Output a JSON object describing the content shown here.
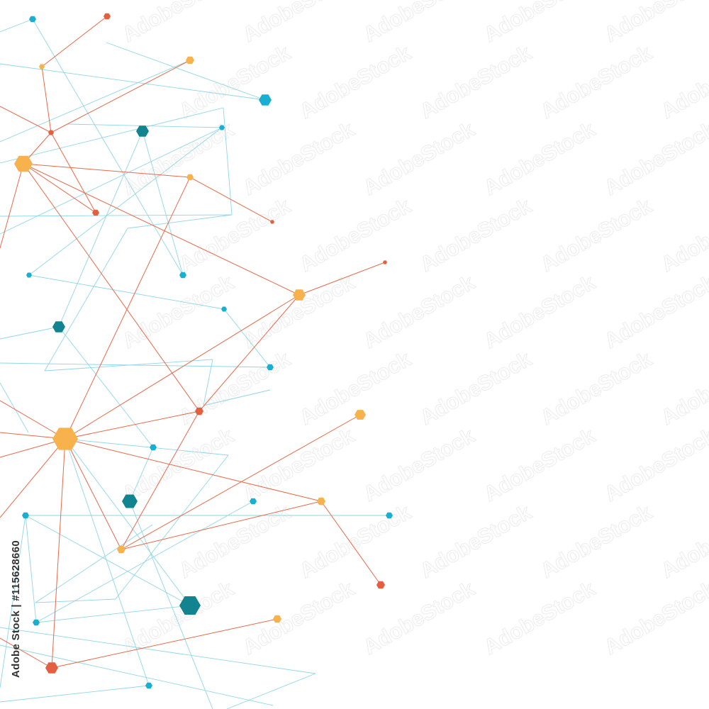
{
  "credit": "Adobe Stock | #115628660",
  "watermark": "AdobeStock",
  "colors": {
    "background": "#FFFFFF",
    "orange": "#F7B24D",
    "red": "#E2603F",
    "cyan": "#1AAFD0",
    "teal": "#12848F",
    "cyan_line": "#8FD6E6",
    "red_line": "#E56A4A"
  }
}
